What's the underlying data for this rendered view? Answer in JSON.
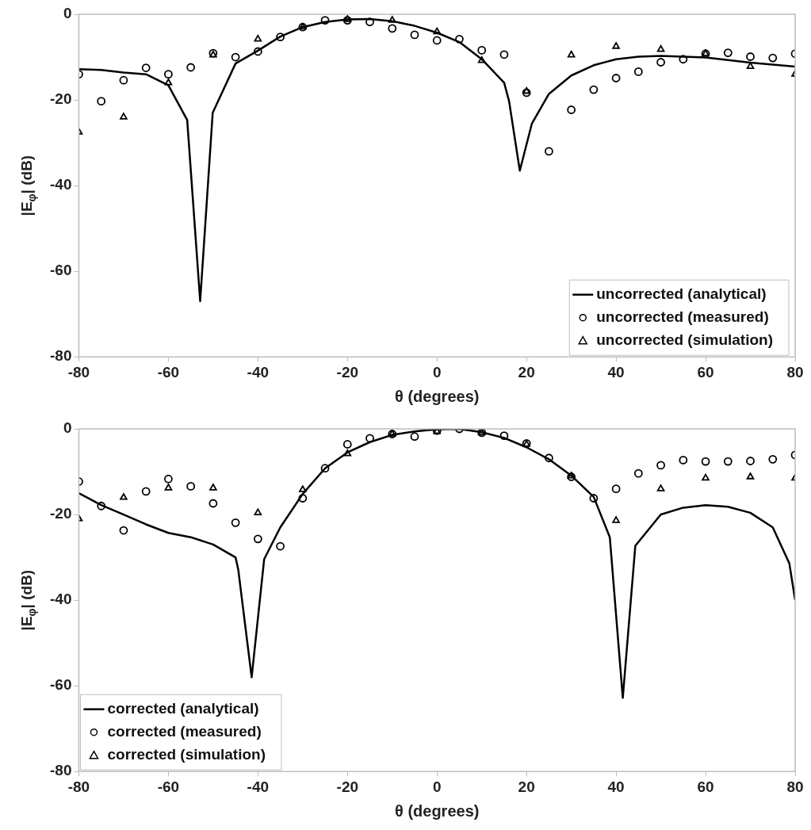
{
  "chart_data": [
    {
      "type": "line",
      "xlabel": "θ (degrees)",
      "ylabel": "|E$_{φ}$| (dB)",
      "xlim": [
        -80,
        80
      ],
      "xticks": [
        -80,
        -60,
        -40,
        -20,
        0,
        20,
        40,
        60,
        80
      ],
      "ylim": [
        -80,
        0
      ],
      "yticks": [
        -80,
        -60,
        -40,
        -20,
        0
      ],
      "grid": false,
      "legend": "bottom right",
      "series": [
        {
          "name": "uncorrected (analytical)",
          "type": "line",
          "color": "#000000",
          "marker": "none",
          "line_style": "solid",
          "x": [
            -80,
            -75,
            -70,
            -65,
            -60,
            -55.8,
            -52.9,
            -50.1,
            -45,
            -40,
            -35,
            -30,
            -25,
            -20,
            -15,
            -10,
            -5,
            0,
            5,
            10,
            15,
            16.1,
            18.5,
            21.2,
            25,
            30,
            35,
            40,
            45,
            50,
            60,
            70,
            80
          ],
          "values": [
            -12.8,
            -13,
            -13.6,
            -14,
            -16.6,
            -24.7,
            -67,
            -23,
            -11.5,
            -8.5,
            -5.2,
            -3,
            -1.8,
            -1.2,
            -1.1,
            -1.6,
            -2.7,
            -4.3,
            -6.5,
            -10.5,
            -16,
            -20.3,
            -36.5,
            -25.5,
            -18.6,
            -14.3,
            -11.9,
            -10.5,
            -9.9,
            -9.7,
            -10.1,
            -11.3,
            -12.2
          ]
        },
        {
          "name": "uncorrected (measured)",
          "type": "scatter",
          "color": "#000000",
          "marker": "circle",
          "x": [
            -80,
            -75,
            -70,
            -65,
            -60,
            -55,
            -50,
            -45,
            -40,
            -35,
            -30,
            -25,
            -20,
            -15,
            -10,
            -5,
            0,
            5,
            10,
            15,
            20,
            25,
            30,
            35,
            40,
            45,
            50,
            55,
            60,
            65,
            70,
            75,
            80
          ],
          "values": [
            -14,
            -20.3,
            -15.4,
            -12.5,
            -14,
            -12.4,
            -9.1,
            -10,
            -8.7,
            -5.3,
            -3,
            -1.4,
            -1.4,
            -1.8,
            -3.3,
            -4.8,
            -6.1,
            -5.8,
            -8.4,
            -9.4,
            -18.3,
            -32,
            -22.3,
            -17.6,
            -14.9,
            -13.4,
            -11.2,
            -10.5,
            -9.2,
            -9,
            -9.9,
            -10.2,
            -9.2
          ]
        },
        {
          "name": "uncorrected (simulation)",
          "type": "scatter",
          "color": "#000000",
          "marker": "triangle",
          "x": [
            -80,
            -70,
            -60,
            -50,
            -40,
            -30,
            -20,
            -10,
            0,
            10,
            20,
            30,
            40,
            50,
            60,
            70,
            80
          ],
          "values": [
            -27.5,
            -24,
            -16,
            -9.5,
            -5.8,
            -3,
            -1.2,
            -1.4,
            -4.1,
            -10.8,
            -18,
            -9.5,
            -7.5,
            -8.2,
            -9.2,
            -12.2,
            -14
          ]
        }
      ]
    },
    {
      "type": "line",
      "xlabel": "θ (degrees)",
      "ylabel": "|E$_{φ}$| (dB)",
      "xlim": [
        -80,
        80
      ],
      "xticks": [
        -80,
        -60,
        -40,
        -20,
        0,
        20,
        40,
        60,
        80
      ],
      "ylim": [
        -80,
        0
      ],
      "yticks": [
        -80,
        -60,
        -40,
        -20,
        0
      ],
      "grid": false,
      "legend": "bottom left",
      "series": [
        {
          "name": "corrected (analytical)",
          "type": "line",
          "color": "#000000",
          "marker": "none",
          "line_style": "solid",
          "x": [
            -80,
            -75,
            -70,
            -65,
            -60,
            -55,
            -50,
            -45,
            -44.4,
            -41.4,
            -38.6,
            -35,
            -30,
            -25,
            -20,
            -15,
            -10,
            -5,
            0,
            5,
            10,
            15,
            20,
            25,
            30,
            35,
            38.6,
            41.5,
            44.3,
            50,
            55,
            60,
            65,
            70,
            75,
            78.7,
            80
          ],
          "values": [
            -15,
            -17.8,
            -20,
            -22.3,
            -24.3,
            -25.3,
            -27,
            -30,
            -32.8,
            -58,
            -30.4,
            -23,
            -15.2,
            -9.2,
            -5.5,
            -3.1,
            -1.4,
            -0.6,
            -0.1,
            0,
            -0.8,
            -2.1,
            -4.3,
            -7.1,
            -10.9,
            -15.9,
            -25.3,
            -62.8,
            -27.3,
            -20,
            -18.4,
            -17.8,
            -18.2,
            -19.6,
            -23,
            -31.4,
            -40
          ]
        },
        {
          "name": "corrected (measured)",
          "type": "scatter",
          "color": "#000000",
          "marker": "circle",
          "x": [
            -80,
            -75,
            -70,
            -65,
            -60,
            -55,
            -50,
            -45,
            -40,
            -35,
            -30,
            -25,
            -20,
            -15,
            -10,
            -5,
            0,
            5,
            10,
            15,
            20,
            25,
            30,
            35,
            40,
            45,
            50,
            55,
            60,
            65,
            70,
            75,
            80
          ],
          "values": [
            -12.3,
            -18,
            -23.7,
            -14.6,
            -11.7,
            -13.4,
            -17.4,
            -21.9,
            -25.7,
            -27.4,
            -16.2,
            -9.2,
            -3.6,
            -2.2,
            -1.2,
            -1.8,
            -0.4,
            0,
            -0.9,
            -1.6,
            -3.4,
            -6.8,
            -11.2,
            -16.2,
            -14,
            -10.4,
            -8.5,
            -7.3,
            -7.6,
            -7.6,
            -7.5,
            -7.1,
            -6.1
          ]
        },
        {
          "name": "corrected (simulation)",
          "type": "scatter",
          "color": "#000000",
          "marker": "triangle",
          "x": [
            -80,
            -70,
            -60,
            -50,
            -40,
            -30,
            -20,
            -10,
            0,
            10,
            20,
            30,
            40,
            50,
            60,
            70,
            80
          ],
          "values": [
            -21,
            -16,
            -13.8,
            -13.8,
            -19.6,
            -14.2,
            -5.8,
            -1.2,
            -0.6,
            -0.9,
            -3.6,
            -11,
            -21.4,
            -14,
            -11.5,
            -11.2,
            -11.5
          ]
        }
      ]
    }
  ]
}
